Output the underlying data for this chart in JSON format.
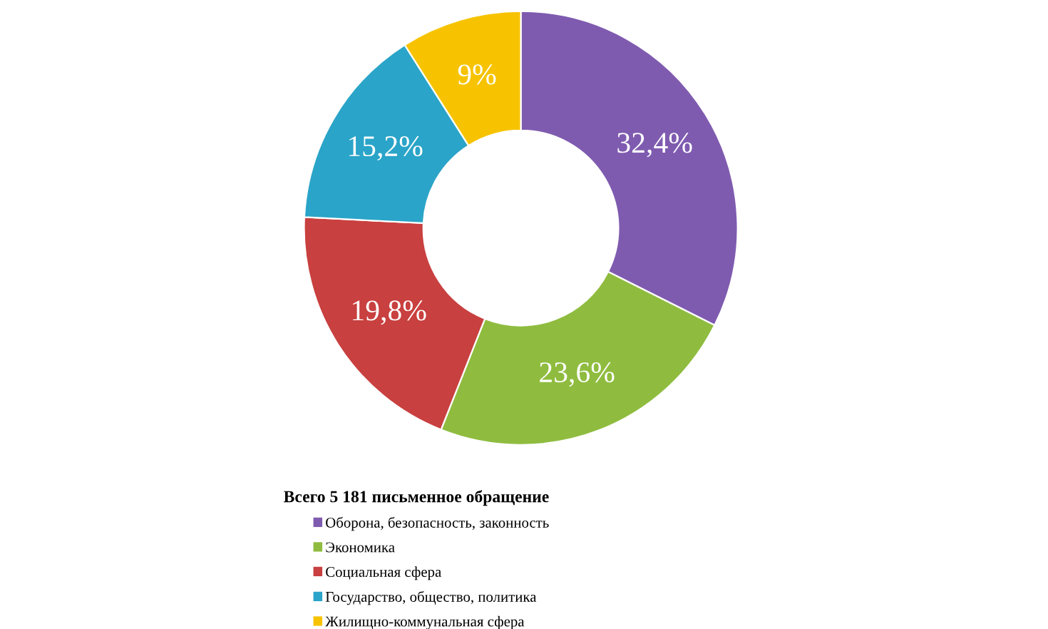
{
  "chart_data": {
    "type": "donut",
    "categories": [
      "Оборона, безопасность, законность",
      "Экономика",
      "Социальная сфера",
      "Государство, общество, политика",
      "Жилищно-коммунальная сфера"
    ],
    "values": [
      32.4,
      23.6,
      19.8,
      15.2,
      9
    ],
    "value_labels": [
      "32,4%",
      "23,6%",
      "19,8%",
      "15,2%",
      "9%"
    ],
    "colors": [
      "#7f5bb0",
      "#8fbc3f",
      "#c8403f",
      "#2aa4c8",
      "#f7c300"
    ],
    "legend_title": "Всего 5 181 письменное обращение",
    "legend": "bottom"
  }
}
